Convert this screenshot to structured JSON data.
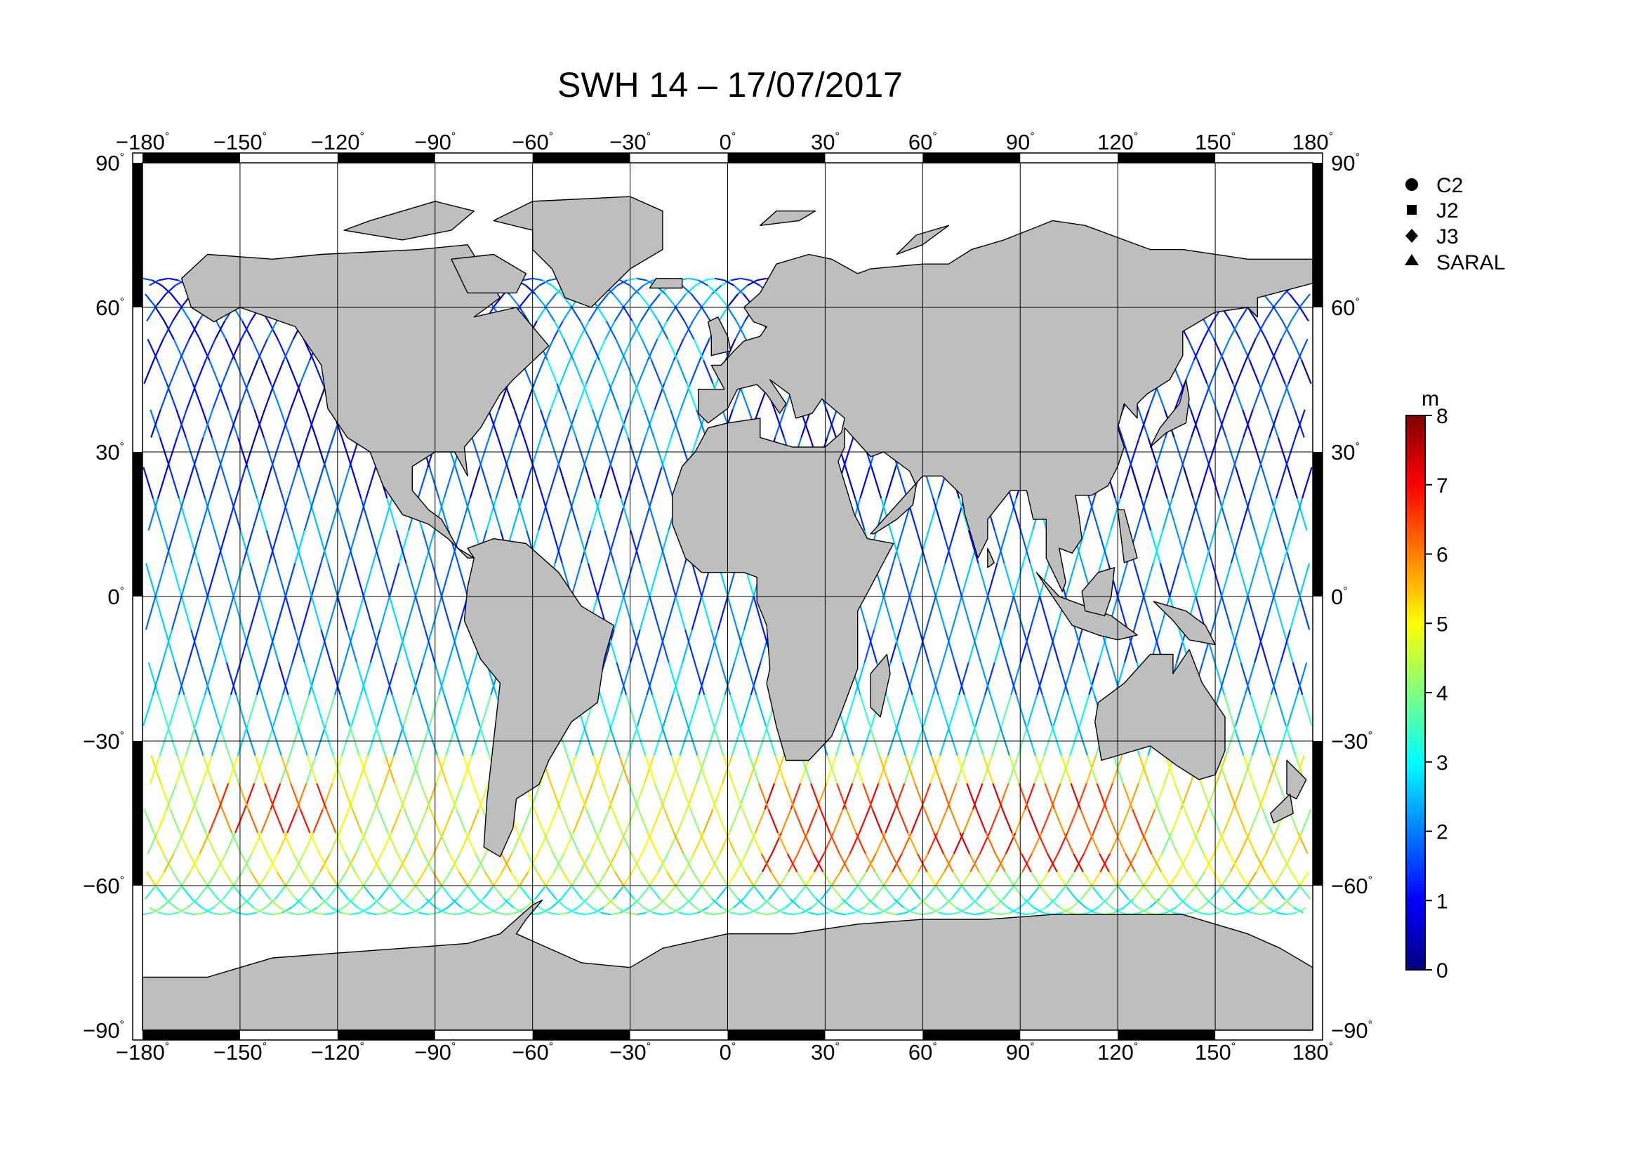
{
  "title": "SWH 14 – 17/07/2017",
  "map": {
    "projection": "equirectangular",
    "lon_range": [
      -180,
      180
    ],
    "lat_range": [
      -90,
      90
    ],
    "lon_ticks": [
      -180,
      -150,
      -120,
      -90,
      -60,
      -30,
      0,
      30,
      60,
      90,
      120,
      150,
      180
    ],
    "lat_ticks": [
      90,
      60,
      30,
      0,
      -30,
      -60,
      -90
    ],
    "lon_tick_labels": [
      "−180",
      "−150",
      "−120",
      "−90",
      "−60",
      "−30",
      "0",
      "30",
      "60",
      "90",
      "120",
      "150",
      "180"
    ],
    "lat_tick_labels": [
      "90",
      "60",
      "30",
      "0",
      "−30",
      "−60",
      "−90"
    ],
    "degree_symbol": "°",
    "land_color": "#bebebe",
    "ocean_color": "#ffffff",
    "grid": true
  },
  "legend": {
    "items": [
      {
        "label": "C2",
        "marker": "circle"
      },
      {
        "label": "J2",
        "marker": "square"
      },
      {
        "label": "J3",
        "marker": "diamond"
      },
      {
        "label": "SARAL",
        "marker": "triangle"
      }
    ]
  },
  "colorbar": {
    "unit": "m",
    "min": 0,
    "max": 8,
    "ticks": [
      "0",
      "1",
      "2",
      "3",
      "4",
      "5",
      "6",
      "7",
      "8"
    ],
    "colormap": "jet",
    "colors": [
      "#00007f",
      "#0000ff",
      "#007fff",
      "#00ffff",
      "#7fff7f",
      "#ffff00",
      "#ff7f00",
      "#ff0000",
      "#7f0000"
    ]
  },
  "chart_data": {
    "type": "scatter",
    "title": "SWH 14 – 17/07/2017",
    "xlabel": "",
    "ylabel": "",
    "xlim": [
      -180,
      180
    ],
    "ylim": [
      -90,
      90
    ],
    "value_unit": "m",
    "value_range": [
      0,
      8
    ],
    "description_of_tracks": "satellite altimeter ground tracks colored by significant wave height",
    "regions": [
      {
        "lat_range": [
          20,
          66
        ],
        "swh_m": 1.2
      },
      {
        "lat_range": [
          -20,
          20
        ],
        "swh_m": 2.0
      },
      {
        "lat_range": [
          -35,
          -20
        ],
        "swh_m": 3.0
      },
      {
        "lat_range": [
          -60,
          -35
        ],
        "swh_m": 4.8
      },
      {
        "lat_range": [
          -66,
          -60
        ],
        "swh_m": 3.5
      }
    ],
    "peak_regions": [
      {
        "lon_range": [
          10,
          130
        ],
        "lat_range": [
          -58,
          -40
        ],
        "swh_m": 6.5
      },
      {
        "lon_range": [
          -160,
          -120
        ],
        "lat_range": [
          -50,
          -40
        ],
        "swh_m": 6.2
      }
    ]
  }
}
